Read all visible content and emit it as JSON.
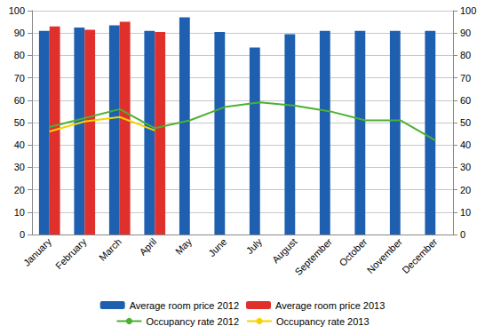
{
  "chart_data": {
    "type": "bar",
    "categories": [
      "January",
      "February",
      "March",
      "April",
      "May",
      "June",
      "July",
      "August",
      "September",
      "October",
      "November",
      "December"
    ],
    "series": [
      {
        "name": "Average room price 2012",
        "type": "bar",
        "color": "#1f5fb0",
        "values": [
          91,
          92.5,
          93.5,
          91,
          97,
          90.5,
          83.5,
          89.5,
          91,
          91,
          91,
          91
        ]
      },
      {
        "name": "Average room price 2013",
        "type": "bar",
        "color": "#e0302c",
        "values": [
          93,
          91.5,
          95,
          90.5,
          null,
          null,
          null,
          null,
          null,
          null,
          null,
          null
        ]
      },
      {
        "name": "Occupancy rate 2012",
        "type": "line",
        "color": "#4cb032",
        "marker": "none",
        "axis": "y2",
        "values": [
          48,
          52,
          56,
          47.5,
          51,
          57,
          59,
          57.5,
          55,
          51,
          51,
          42
        ]
      },
      {
        "name": "Occupancy rate 2013",
        "type": "line",
        "color": "#f2d400",
        "marker": "none",
        "axis": "y2",
        "values": [
          46,
          50.5,
          52.5,
          46.5,
          null,
          null,
          null,
          null,
          null,
          null,
          null,
          null
        ]
      }
    ],
    "ylim": [
      0,
      100
    ],
    "yticks": [
      0,
      10,
      20,
      30,
      40,
      50,
      60,
      70,
      80,
      90,
      100
    ],
    "y2lim": [
      0,
      100
    ],
    "y2ticks": [
      0,
      10,
      20,
      30,
      40,
      50,
      60,
      70,
      80,
      90,
      100
    ],
    "grid": true,
    "legend": "bottom"
  }
}
